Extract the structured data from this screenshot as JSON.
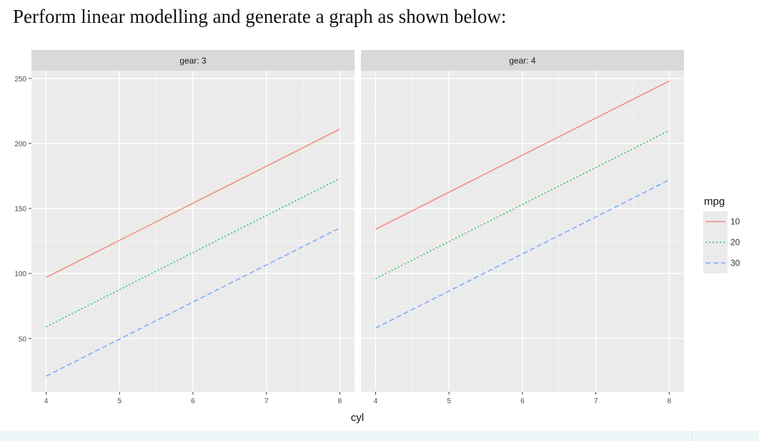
{
  "page": {
    "heading": "Perform linear modelling and generate a graph as shown below:"
  },
  "chart_data": {
    "type": "line",
    "facet_var": "gear",
    "facets": [
      {
        "label": "gear: 3",
        "x": [
          4,
          8
        ],
        "series": [
          {
            "name": "10",
            "values": [
              97,
              211
            ]
          },
          {
            "name": "20",
            "values": [
              59,
              173
            ]
          },
          {
            "name": "30",
            "values": [
              21,
              135
            ]
          }
        ]
      },
      {
        "label": "gear: 4",
        "x": [
          4,
          8
        ],
        "series": [
          {
            "name": "10",
            "values": [
              134,
              248
            ]
          },
          {
            "name": "20",
            "values": [
              96,
              210
            ]
          },
          {
            "name": "30",
            "values": [
              58,
              172
            ]
          }
        ]
      }
    ],
    "xlabel": "cyl",
    "ylabel": "",
    "xlim": [
      3.8,
      8.2
    ],
    "ylim": [
      9,
      256
    ],
    "xticks": [
      "4",
      "5",
      "6",
      "7",
      "8"
    ],
    "yticks": [
      "50",
      "100",
      "150",
      "200",
      "250"
    ],
    "legend": {
      "title": "mpg",
      "position": "right"
    },
    "series_styles": {
      "10": {
        "color": "#f8766d",
        "dash": "solid"
      },
      "20": {
        "color": "#00ba38",
        "dash": "dotted"
      },
      "30": {
        "color": "#619cff",
        "dash": "dashed"
      }
    },
    "grid": true,
    "panel_background": "#ebebeb",
    "strip_background": "#d9d9d9"
  }
}
